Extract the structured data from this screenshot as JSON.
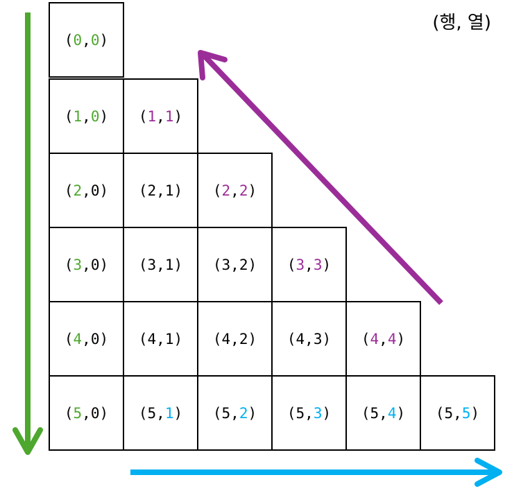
{
  "caption": "(행, 열)",
  "colors": {
    "row_axis": "#4ea72e",
    "diagonal": "#9b2d99",
    "column_axis": "#00b0f0",
    "default_text": "#000000",
    "grid_line": "#000000"
  },
  "arrows": [
    {
      "name": "row-direction-arrow",
      "color_key": "row_axis",
      "direction": "down"
    },
    {
      "name": "diagonal-direction-arrow",
      "color_key": "diagonal",
      "direction": "up-left"
    },
    {
      "name": "column-direction-arrow",
      "color_key": "column_axis",
      "direction": "right"
    }
  ],
  "triangle": {
    "rows": 6,
    "cells": [
      [
        {
          "r": "0",
          "c": "0",
          "r_color": "row_axis",
          "c_color": "row_axis"
        }
      ],
      [
        {
          "r": "1",
          "c": "0",
          "r_color": "row_axis",
          "c_color": "row_axis"
        },
        {
          "r": "1",
          "c": "1",
          "r_color": "diagonal",
          "c_color": "diagonal"
        }
      ],
      [
        {
          "r": "2",
          "c": "0",
          "r_color": "row_axis",
          "c_color": "default_text"
        },
        {
          "r": "2",
          "c": "1",
          "r_color": "default_text",
          "c_color": "default_text"
        },
        {
          "r": "2",
          "c": "2",
          "r_color": "diagonal",
          "c_color": "diagonal"
        }
      ],
      [
        {
          "r": "3",
          "c": "0",
          "r_color": "row_axis",
          "c_color": "default_text"
        },
        {
          "r": "3",
          "c": "1",
          "r_color": "default_text",
          "c_color": "default_text"
        },
        {
          "r": "3",
          "c": "2",
          "r_color": "default_text",
          "c_color": "default_text"
        },
        {
          "r": "3",
          "c": "3",
          "r_color": "diagonal",
          "c_color": "diagonal"
        }
      ],
      [
        {
          "r": "4",
          "c": "0",
          "r_color": "row_axis",
          "c_color": "default_text"
        },
        {
          "r": "4",
          "c": "1",
          "r_color": "default_text",
          "c_color": "default_text"
        },
        {
          "r": "4",
          "c": "2",
          "r_color": "default_text",
          "c_color": "default_text"
        },
        {
          "r": "4",
          "c": "3",
          "r_color": "default_text",
          "c_color": "default_text"
        },
        {
          "r": "4",
          "c": "4",
          "r_color": "diagonal",
          "c_color": "diagonal"
        }
      ],
      [
        {
          "r": "5",
          "c": "0",
          "r_color": "row_axis",
          "c_color": "default_text"
        },
        {
          "r": "5",
          "c": "1",
          "r_color": "default_text",
          "c_color": "column_axis"
        },
        {
          "r": "5",
          "c": "2",
          "r_color": "default_text",
          "c_color": "column_axis"
        },
        {
          "r": "5",
          "c": "3",
          "r_color": "default_text",
          "c_color": "column_axis"
        },
        {
          "r": "5",
          "c": "4",
          "r_color": "default_text",
          "c_color": "column_axis"
        },
        {
          "r": "5",
          "c": "5",
          "r_color": "default_text",
          "c_color": "column_axis"
        }
      ]
    ]
  }
}
